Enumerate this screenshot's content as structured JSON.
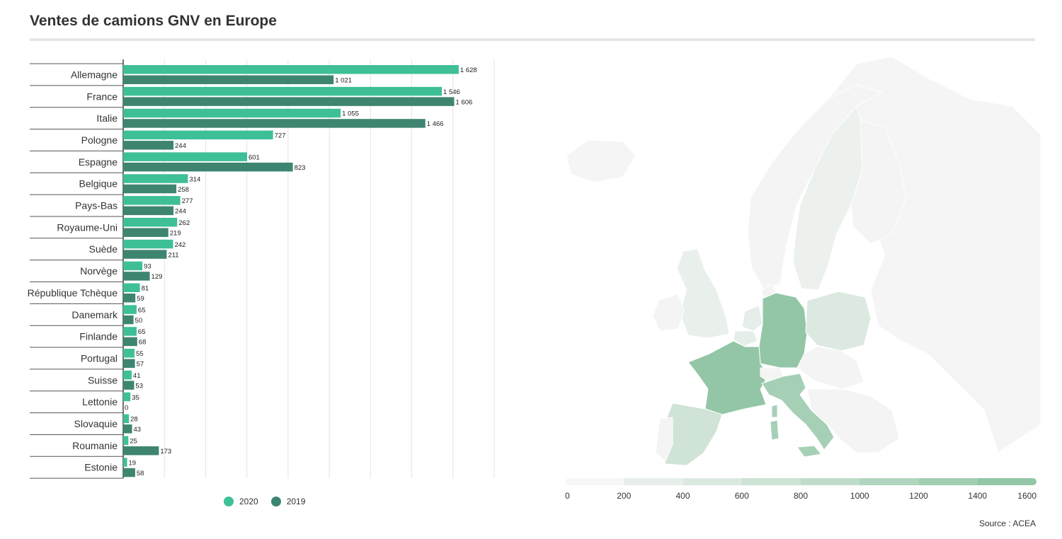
{
  "title": "Ventes de camions GNV en Europe",
  "source": "Source : ACEA",
  "colors": {
    "y2020": "#3ebf97",
    "y2019": "#3e8571"
  },
  "legend": [
    "2020",
    "2019"
  ],
  "chart_data": {
    "type": "bar",
    "orientation": "horizontal",
    "title": "Ventes de camions GNV en Europe",
    "categories": [
      "Allemagne",
      "France",
      "Italie",
      "Pologne",
      "Espagne",
      "Belgique",
      "Pays-Bas",
      "Royaume-Uni",
      "Suède",
      "Norvège",
      "République Tchèque",
      "Danemark",
      "Finlande",
      "Portugal",
      "Suisse",
      "Lettonie",
      "Slovaquie",
      "Roumanie",
      "Estonie"
    ],
    "series": [
      {
        "name": "2020",
        "values": [
          1628,
          1546,
          1055,
          727,
          601,
          314,
          277,
          262,
          242,
          93,
          81,
          65,
          65,
          55,
          41,
          35,
          28,
          25,
          19
        ]
      },
      {
        "name": "2019",
        "values": [
          1021,
          1606,
          1466,
          244,
          823,
          258,
          244,
          219,
          211,
          129,
          59,
          50,
          68,
          57,
          53,
          0,
          43,
          173,
          58
        ]
      }
    ],
    "value_labels": [
      [
        "1 628",
        "1 546",
        "1 055",
        "727",
        "601",
        "314",
        "277",
        "262",
        "242",
        "93",
        "81",
        "65",
        "65",
        "55",
        "41",
        "35",
        "28",
        "25",
        "19"
      ],
      [
        "1 021",
        "1 606",
        "1 466",
        "244",
        "823",
        "258",
        "244",
        "219",
        "211",
        "129",
        "59",
        "50",
        "68",
        "57",
        "53",
        "0",
        "43",
        "173",
        "58"
      ]
    ],
    "xlim": [
      0,
      1800
    ],
    "grid": true,
    "legend_position": "bottom"
  },
  "map": {
    "type": "choropleth",
    "scale_ticks": [
      "0",
      "200",
      "400",
      "600",
      "800",
      "1000",
      "1200",
      "1400",
      "1600"
    ],
    "scale_colors": [
      "#f6f7f6",
      "#e8efea",
      "#dbe9e0",
      "#cde3d5",
      "#bfdcc9",
      "#b1d5be",
      "#a2ceb2",
      "#93c6a6"
    ]
  }
}
